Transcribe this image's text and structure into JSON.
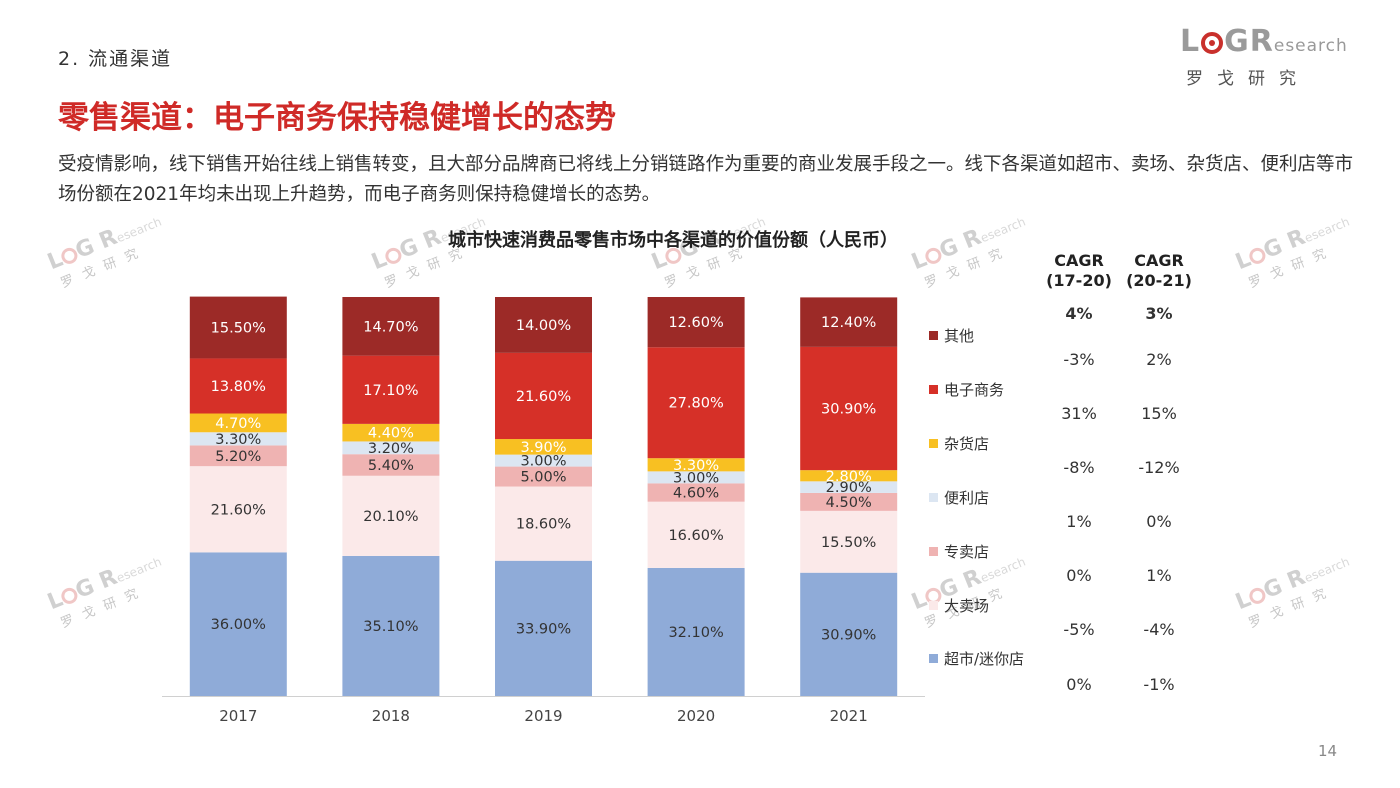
{
  "header": {
    "section": "2. 流通渠道",
    "title": "零售渠道：电子商务保持稳健增长的态势",
    "description": "受疫情影响，线下销售开始往线上销售转变，且大部分品牌商已将线上分销链路作为重要的商业发展手段之一。线下各渠道如超市、卖场、杂货店、便利店等市场份额在2021年均未出现上升趋势，而电子商务则保持稳健增长的态势。"
  },
  "logo": {
    "letters": "L G R",
    "suffix": "esearch",
    "cn": "罗戈研究"
  },
  "watermark": {
    "letters": "L G R",
    "suffix": "esearch",
    "cn": "罗戈研究"
  },
  "page_number": "14",
  "cagr": {
    "headers": [
      {
        "line1": "CAGR",
        "line2": "(17-20)"
      },
      {
        "line1": "CAGR",
        "line2": "(20-21)"
      }
    ],
    "rows": [
      [
        "4%",
        "3%"
      ],
      [
        "-3%",
        "2%"
      ],
      [
        "31%",
        "15%"
      ],
      [
        "-8%",
        "-12%"
      ],
      [
        "1%",
        "0%"
      ],
      [
        "0%",
        "1%"
      ],
      [
        "-5%",
        "-4%"
      ],
      [
        "0%",
        "-1%"
      ]
    ]
  },
  "chart_data": {
    "type": "bar",
    "stacked": true,
    "title": "城市快速消费品零售市场中各渠道的价值份额（人民币）",
    "categories": [
      "2017",
      "2018",
      "2019",
      "2020",
      "2021"
    ],
    "ylim": [
      0,
      100
    ],
    "legend_position": "right",
    "series": [
      {
        "name": "超市/迷你店",
        "color": "#8fabd8",
        "values": [
          36.0,
          35.1,
          33.9,
          32.1,
          30.9
        ],
        "labels": [
          "36.00%",
          "35.10%",
          "33.90%",
          "32.10%",
          "30.90%"
        ]
      },
      {
        "name": "大卖场",
        "color": "#fbe9e9",
        "values": [
          21.6,
          20.1,
          18.6,
          16.6,
          15.5
        ],
        "labels": [
          "21.60%",
          "20.10%",
          "18.60%",
          "16.60%",
          "15.50%"
        ]
      },
      {
        "name": "专卖店",
        "color": "#efb3b2",
        "values": [
          5.2,
          5.4,
          5.0,
          4.6,
          4.5
        ],
        "labels": [
          "5.20%",
          "5.40%",
          "5.00%",
          "4.60%",
          "4.50%"
        ]
      },
      {
        "name": "便利店",
        "color": "#dce6f2",
        "values": [
          3.3,
          3.2,
          3.0,
          3.0,
          2.9
        ],
        "labels": [
          "3.30%",
          "3.20%",
          "3.00%",
          "3.00%",
          "2.90%"
        ]
      },
      {
        "name": "杂货店",
        "color": "#f8c022",
        "values": [
          4.7,
          4.4,
          3.9,
          3.3,
          2.8
        ],
        "labels": [
          "4.70%",
          "4.40%",
          "3.90%",
          "3.30%",
          "2.80%"
        ]
      },
      {
        "name": "电子商务",
        "color": "#d63028",
        "values": [
          13.8,
          17.1,
          21.6,
          27.8,
          30.9
        ],
        "labels": [
          "13.80%",
          "17.10%",
          "21.60%",
          "27.80%",
          "30.90%"
        ]
      },
      {
        "name": "其他",
        "color": "#9c2a27",
        "values": [
          15.5,
          14.7,
          14.0,
          12.6,
          12.4
        ],
        "labels": [
          "15.50%",
          "14.70%",
          "14.00%",
          "12.60%",
          "12.40%"
        ]
      }
    ],
    "label_colors": {
      "超市/迷你店": "#333333",
      "大卖场": "#333333",
      "专卖店": "#333333",
      "便利店": "#333333",
      "杂货店": "#ffffff",
      "电子商务": "#ffffff",
      "其他": "#ffffff"
    }
  }
}
